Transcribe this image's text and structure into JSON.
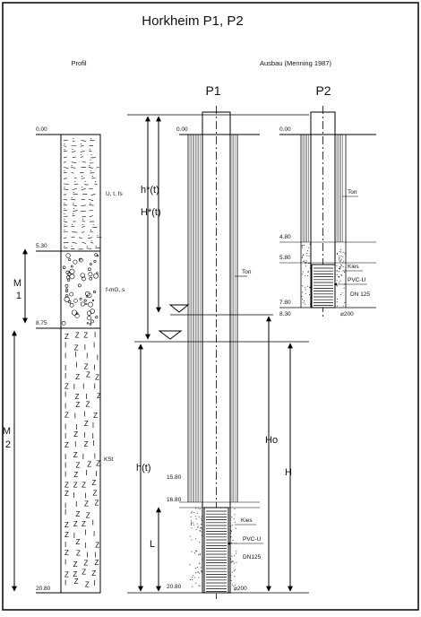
{
  "figure": {
    "title": "Horkheim P1, P2",
    "left_heading": "Profil",
    "right_heading": "Ausbau (Menning 1987)",
    "well_labels": {
      "p1": "P1",
      "p2": "P2"
    }
  },
  "profile": {
    "depths": {
      "d0": "0.00",
      "d1": "5.30",
      "d2": "8.75",
      "d3": "20.80"
    },
    "layers": [
      {
        "label": "U, t, fs",
        "pattern": "silt-clay"
      },
      {
        "label": "f-mG, s",
        "pattern": "gravel"
      },
      {
        "label": "KSt",
        "pattern": "z-i-marks"
      }
    ],
    "segments": {
      "m1_a": "M",
      "m1_b": "1",
      "m2_a": "M",
      "m2_b": "2"
    }
  },
  "well_p1": {
    "depths": {
      "top": "0.00",
      "d1": "15.80",
      "d2": "16.80",
      "bottom": "20.80"
    },
    "annotations": {
      "ton": "Ton",
      "kies": "Kies",
      "pvc": "PVC-U",
      "dn": "DN125",
      "diameter": "⌀200"
    },
    "dimensions": {
      "hstar_small": "h*(t)",
      "hstar_big": "H*(t)",
      "h_t": "h(t)",
      "L": "L",
      "Ho": "Ho",
      "H": "H"
    }
  },
  "well_p2": {
    "depths": {
      "top": "0.00",
      "d1": "4.80",
      "d2": "5.80",
      "d3": "7.80",
      "bottom": "8.30"
    },
    "annotations": {
      "ton": "Ton",
      "kies": "Kies",
      "pvc": "PVC-U",
      "dn": "DN 125",
      "diameter": "⌀200"
    }
  }
}
